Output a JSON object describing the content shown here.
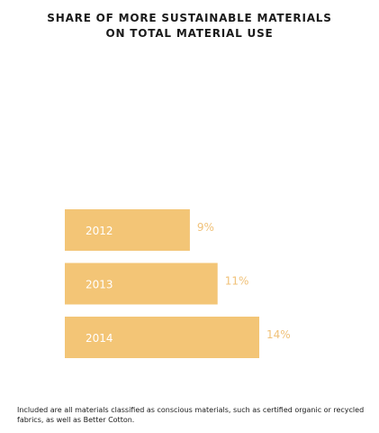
{
  "title_lines": [
    "SHARE OF MORE SUSTAINABLE MATERIALS",
    "ON TOTAL MATERIAL USE"
  ],
  "footnote": "Included are all materials classified as conscious materials, such as certified organic or recycled fabrics, as well as Better Cotton.",
  "colors": {
    "bar": "#f3c576",
    "bar_label": "#ffffff",
    "value_label": "#f0c27a",
    "text": "#1a1a1a"
  },
  "chart_data": {
    "type": "bar",
    "orientation": "horizontal",
    "title": "SHARE OF MORE SUSTAINABLE MATERIALS ON TOTAL MATERIAL USE",
    "categories": [
      "2012",
      "2013",
      "2014"
    ],
    "values": [
      9,
      11,
      14
    ],
    "value_labels": [
      "9%",
      "11%",
      "14%"
    ],
    "unit": "%",
    "xlim": [
      0,
      14
    ],
    "grid": false,
    "legend": "none"
  }
}
